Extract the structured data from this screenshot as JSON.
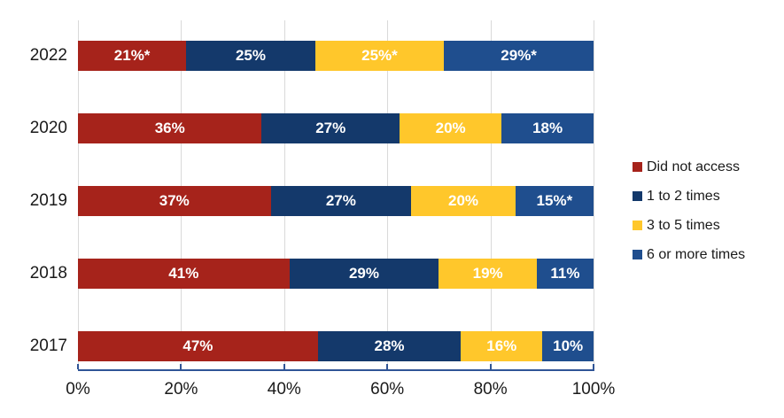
{
  "colors": {
    "did_not_access": "#A6231B",
    "one_to_two_times": "#14396B",
    "three_to_five_times": "#FFC72B",
    "six_or_more_times": "#1F4E8E",
    "axis_line": "#2F5496",
    "gridline": "#D9D9D9",
    "bar_label_text": "#FFFFFF",
    "axis_text": "#1A1A1A",
    "background": "#FFFFFF"
  },
  "chart_data": {
    "type": "bar",
    "orientation": "horizontal",
    "stacked": true,
    "title": "",
    "xlabel": "",
    "ylabel": "",
    "grid": true,
    "categories": [
      "2022",
      "2020",
      "2019",
      "2018",
      "2017"
    ],
    "series": [
      {
        "name": "Did not access",
        "color": "#A6231B",
        "values": [
          21,
          36,
          37,
          41,
          47
        ],
        "labels": [
          "21%*",
          "36%",
          "37%",
          "41%",
          "47%"
        ]
      },
      {
        "name": "1 to 2 times",
        "color": "#14396B",
        "values": [
          25,
          27,
          27,
          29,
          28
        ],
        "labels": [
          "25%",
          "27%",
          "27%",
          "29%",
          "28%"
        ]
      },
      {
        "name": "3 to 5 times",
        "color": "#FFC72B",
        "values": [
          25,
          20,
          20,
          19,
          16
        ],
        "labels": [
          "25%*",
          "20%",
          "20%",
          "19%",
          "16%"
        ]
      },
      {
        "name": "6 or more times",
        "color": "#1F4E8E",
        "values": [
          29,
          18,
          15,
          11,
          10
        ],
        "labels": [
          "29%*",
          "18%",
          "15%*",
          "11%",
          "10%"
        ]
      }
    ],
    "x_axis": {
      "range": [
        0,
        100
      ],
      "tick_labels": [
        "0%",
        "20%",
        "40%",
        "60%",
        "80%",
        "100%"
      ]
    },
    "legend": {
      "position": "right",
      "entries": [
        "Did not access",
        "1 to 2 times",
        "3 to 5 times",
        "6 or more times"
      ]
    }
  }
}
